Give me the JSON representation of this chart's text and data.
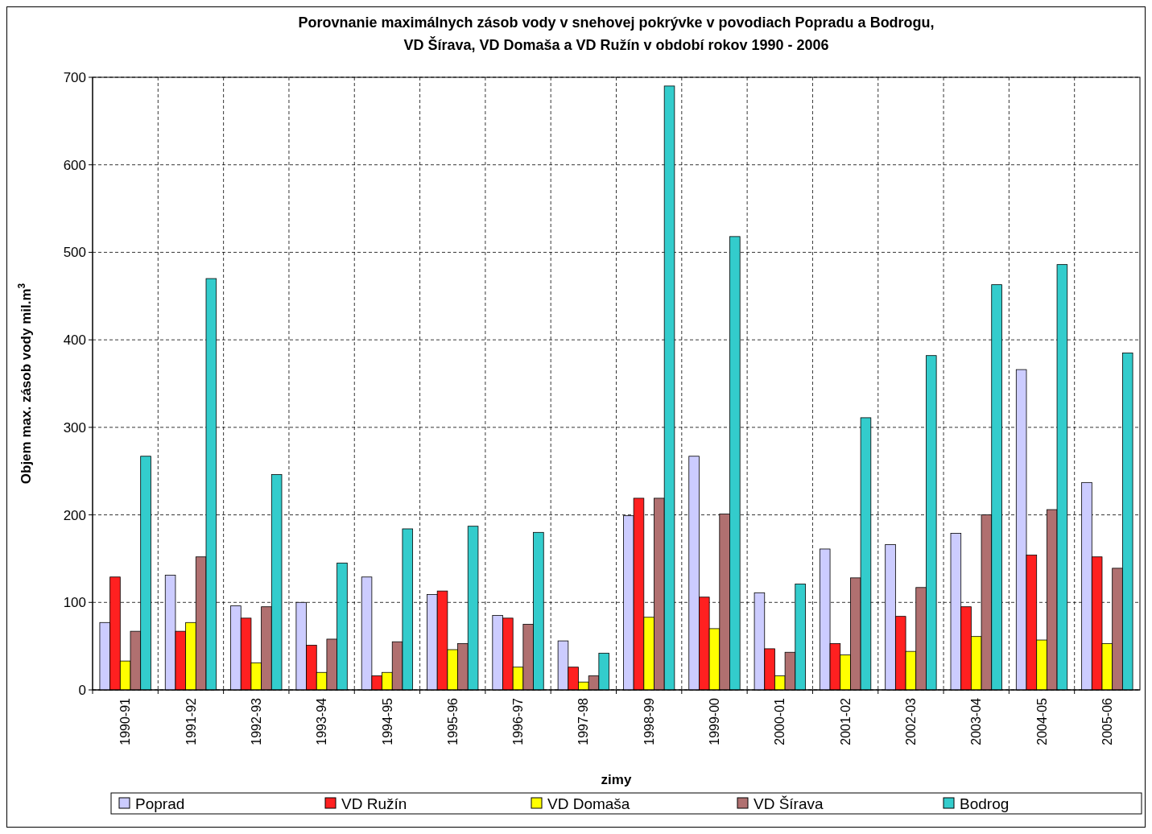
{
  "chart_data": {
    "type": "bar",
    "title": "Porovnanie maximálnych zásob vody v snehovej pokrývke v povodiach Popradu a Bodrogu, VD Šírava, VD Domaša a VD Ružín v období  rokov 1990 - 2006",
    "xlabel": "zimy",
    "ylabel": "Objem max. zásob vody mil.m$^{3}$",
    "categories": [
      "1990-91",
      "1991-92",
      "1992-93",
      "1993-94",
      "1994-95",
      "1995-96",
      "1996-97",
      "1997-98",
      "1998-99",
      "1999-00",
      "2000-01",
      "2001-02",
      "2002-03",
      "2003-04",
      "2004-05",
      "2005-06"
    ],
    "series": [
      {
        "name": "Poprad",
        "color": "#ccccff",
        "values": [
          77,
          131,
          96,
          100,
          129,
          109,
          85,
          56,
          199,
          267,
          111,
          161,
          166,
          179,
          366,
          237
        ]
      },
      {
        "name": "VD Ružín",
        "color": "#ff2020",
        "values": [
          129,
          67,
          82,
          51,
          16,
          113,
          82,
          26,
          219,
          106,
          47,
          53,
          84,
          95,
          154,
          152
        ]
      },
      {
        "name": "VD Domaša",
        "color": "#ffff00",
        "values": [
          33,
          77,
          31,
          20,
          20,
          46,
          26,
          9,
          83,
          70,
          16,
          40,
          44,
          61,
          57,
          53
        ]
      },
      {
        "name": "VD Šírava",
        "color": "#b07070",
        "values": [
          67,
          152,
          95,
          58,
          55,
          53,
          75,
          16,
          219,
          201,
          43,
          128,
          117,
          200,
          206,
          139
        ]
      },
      {
        "name": "Bodrog",
        "color": "#33cccc",
        "values": [
          267,
          470,
          246,
          145,
          184,
          187,
          180,
          42,
          690,
          518,
          121,
          311,
          382,
          463,
          486,
          385
        ]
      }
    ],
    "ylim": [
      0,
      700
    ],
    "yticks": [
      0,
      100,
      200,
      300,
      400,
      500,
      600,
      700
    ],
    "grid": true,
    "legend": "bottom"
  }
}
